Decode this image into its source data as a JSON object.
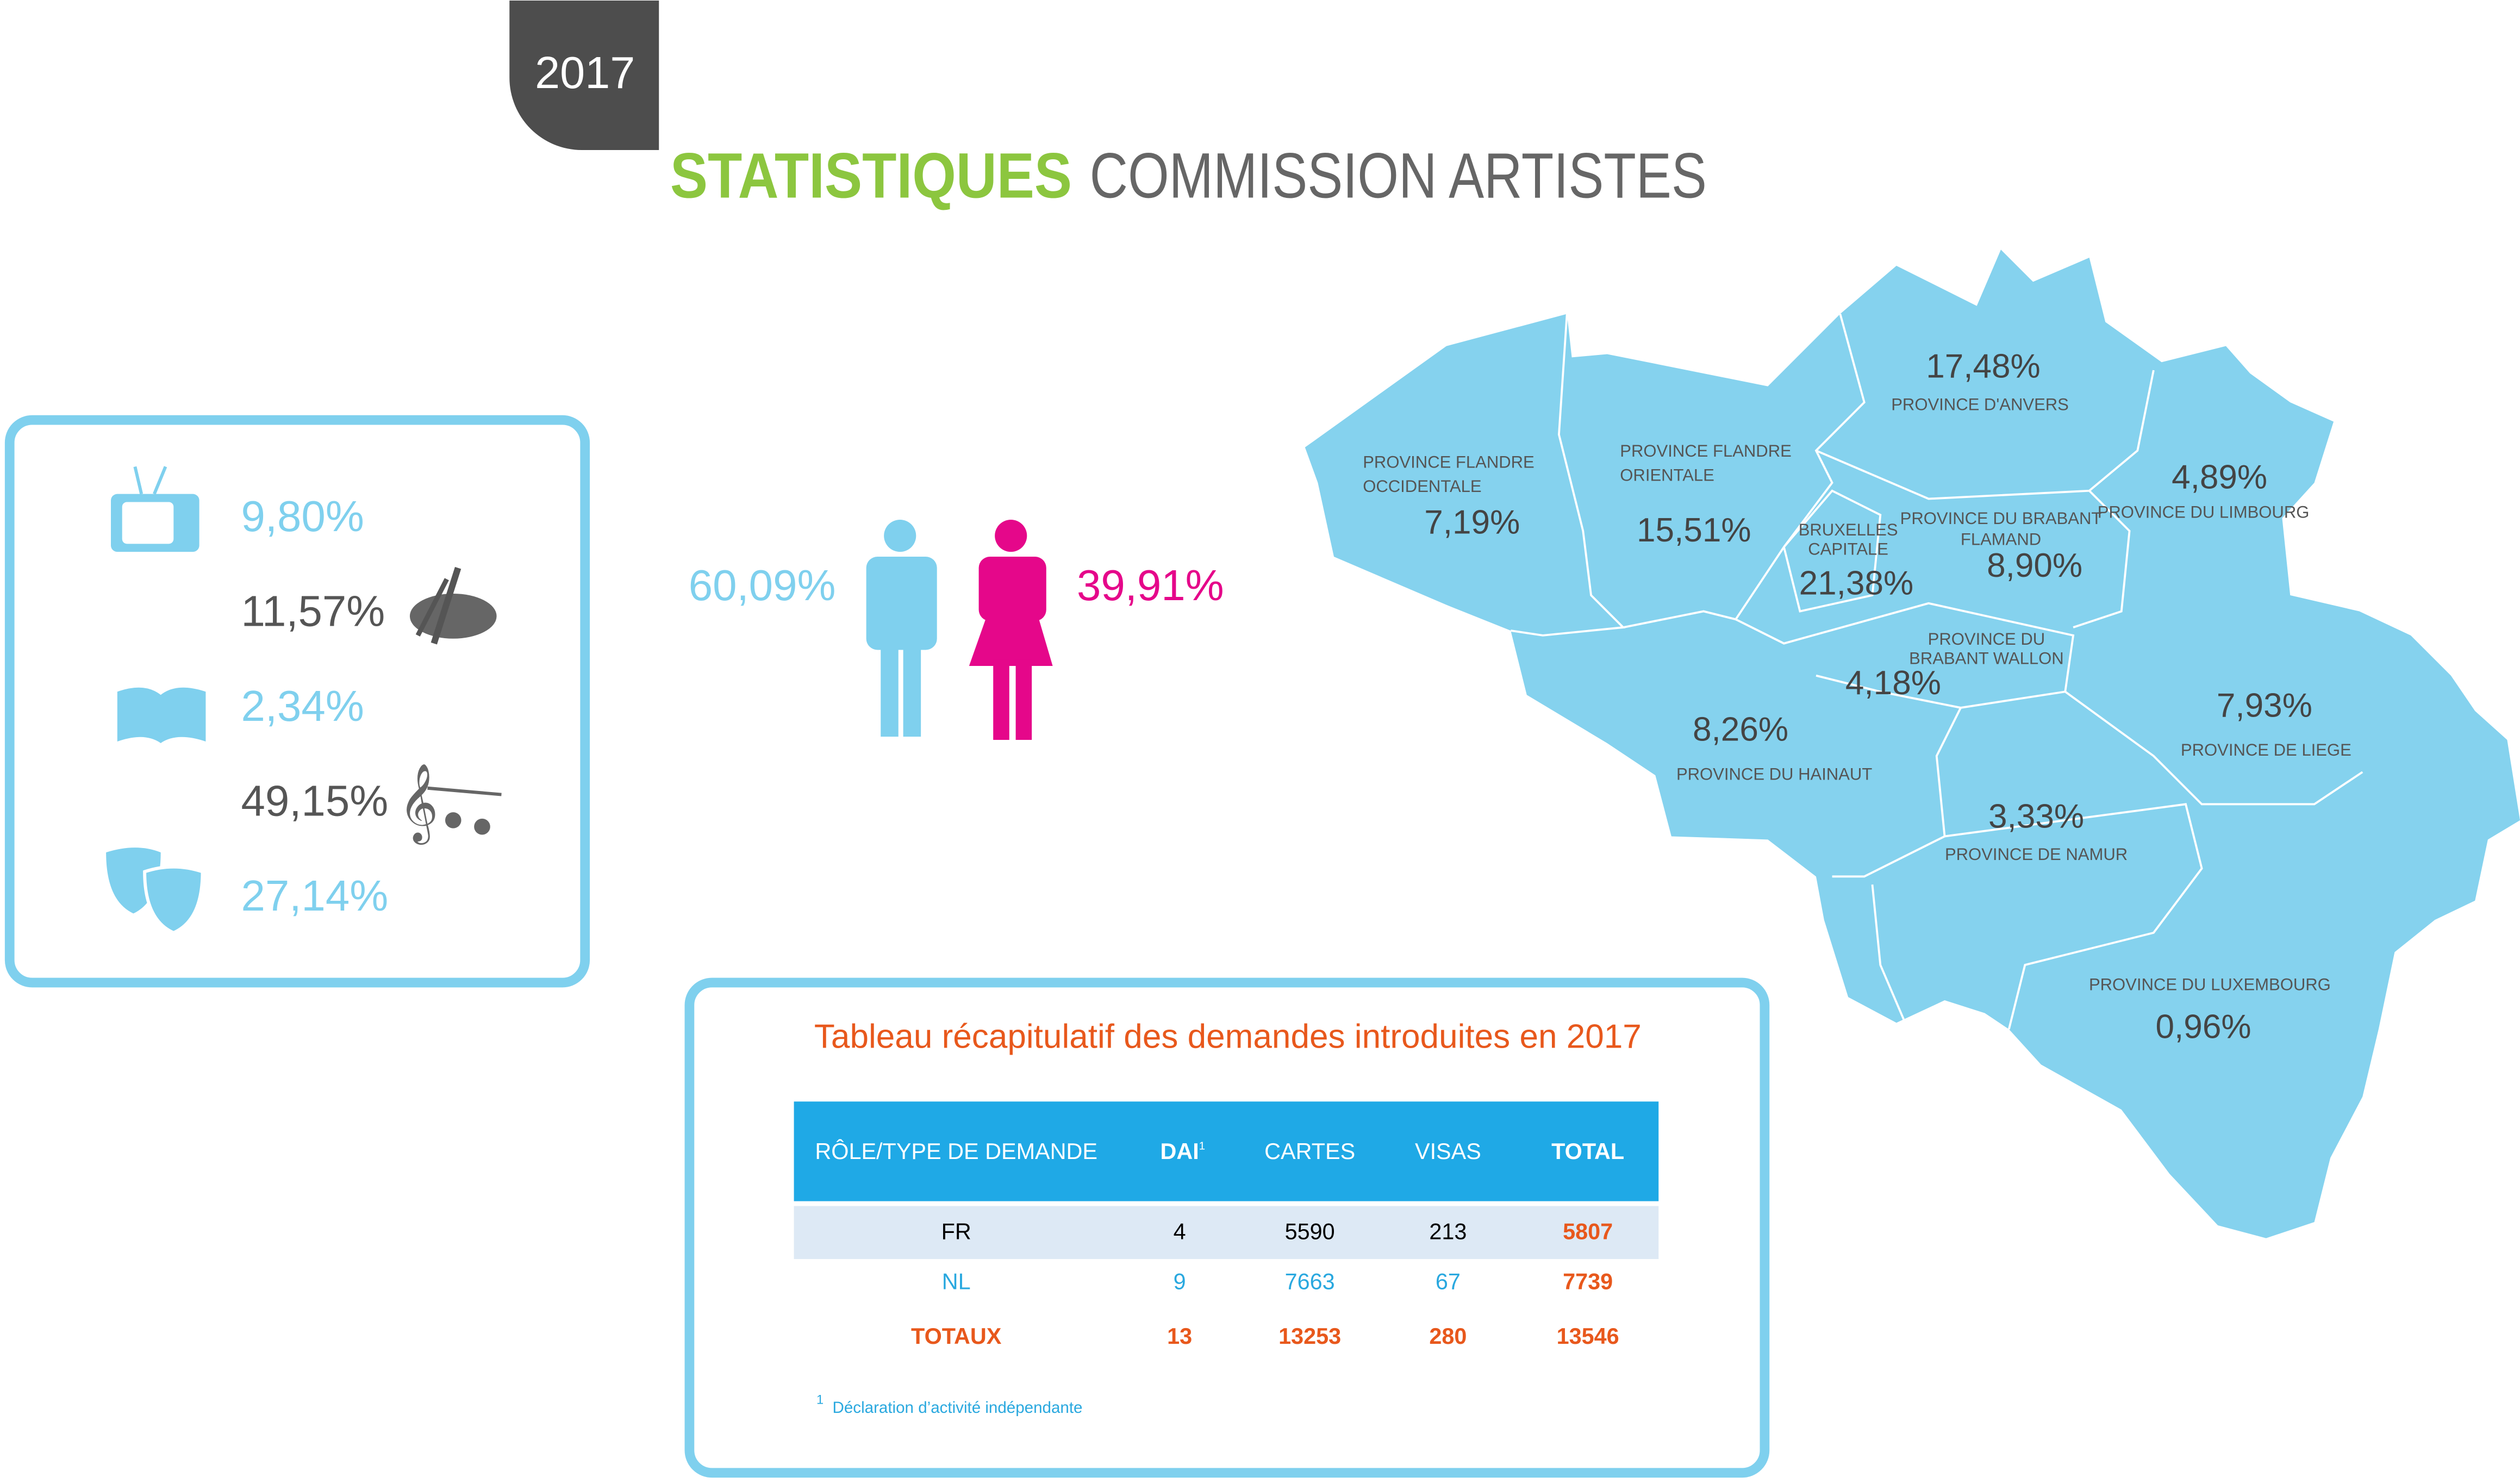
{
  "badge": "2017",
  "title": {
    "highlight": "STATISTIQUES",
    "rest": "COMMISSION ARTISTES"
  },
  "disciplines": [
    "9,80%",
    "11,57%",
    "2,34%",
    "49,15%",
    "27,14%"
  ],
  "gender": {
    "men": "60,09%",
    "women": "39,91%"
  },
  "map": {
    "regions": [
      {
        "name": [
          "PROVINCE FLANDRE",
          "OCCIDENTALE"
        ],
        "value": "7,19%"
      },
      {
        "name": [
          "PROVINCE FLANDRE",
          "ORIENTALE"
        ],
        "value": "15,51%"
      },
      {
        "name": [
          "PROVINCE D'ANVERS"
        ],
        "value": "17,48%"
      },
      {
        "name": [
          "PROVINCE DU LIMBOURG"
        ],
        "value": "4,89%"
      },
      {
        "name": [
          "BRUXELLES",
          "CAPITALE"
        ],
        "value": "21,38%"
      },
      {
        "name": [
          "PROVINCE DU BRABANT",
          "FLAMAND"
        ],
        "value": "8,90%"
      },
      {
        "name": [
          "PROVINCE DU",
          "BRABANT WALLON"
        ],
        "value": "4,18%"
      },
      {
        "name": [
          "PROVINCE DU HAINAUT"
        ],
        "value": "8,26%"
      },
      {
        "name": [
          "PROVINCE DE LIEGE"
        ],
        "value": "7,93%"
      },
      {
        "name": [
          "PROVINCE DE NAMUR"
        ],
        "value": "3,33%"
      },
      {
        "name": [
          "PROVINCE DU LUXEMBOURG"
        ],
        "value": "0,96%"
      }
    ]
  },
  "table": {
    "title": "Tableau récapitulatif des demandes introduites en 2017",
    "header": [
      "RÔLE/TYPE DE DEMANDE",
      "DAI",
      "CARTES",
      "VISAS",
      "TOTAL"
    ],
    "header_note": "1",
    "rows": [
      [
        "FR",
        "4",
        "5590",
        "213",
        "5807"
      ],
      [
        "NL",
        "9",
        "7663",
        "67",
        "7739"
      ],
      [
        "TOTAUX",
        "13",
        "13253",
        "280",
        "13546"
      ]
    ],
    "footnote": {
      "mark": "1",
      "text": "Déclaration d’activité indépendante"
    }
  }
}
